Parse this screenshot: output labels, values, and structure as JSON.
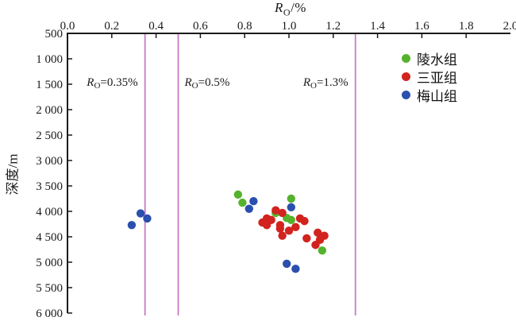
{
  "chart_data": {
    "type": "scatter",
    "title": {
      "var": "R",
      "sub": "O",
      "suffix": "/%"
    },
    "xlabel": "R_O/%",
    "ylabel": "深度/m",
    "grid": false,
    "legend_position": "upper right",
    "x_axis": {
      "min": 0.0,
      "max": 2.0,
      "position": "top",
      "tick_values": [
        0.0,
        0.2,
        0.4,
        0.6,
        0.8,
        1.0,
        1.2,
        1.4,
        1.6,
        1.8,
        2.0
      ],
      "tick_labels": [
        "0.0",
        "0.2",
        "0.4",
        "0.6",
        "0.8",
        "1.0",
        "1.2",
        "1.4",
        "1.6",
        "1.8",
        "2.0"
      ]
    },
    "y_axis": {
      "min": 500,
      "max": 6000,
      "inverted": true,
      "tick_values": [
        500,
        1000,
        1500,
        2000,
        2500,
        3000,
        3500,
        4000,
        4500,
        5000,
        5500,
        6000
      ],
      "tick_labels": [
        "500",
        "1 000",
        "1 500",
        "2 000",
        "2 500",
        "3 000",
        "3 500",
        "4 000",
        "4 500",
        "5 000",
        "5 500",
        "6 000"
      ]
    },
    "reference_lines": [
      {
        "value": 0.35,
        "color": "#c878c8",
        "label_side": "left",
        "label": {
          "var": "R",
          "sub": "O",
          "rest": "=0.35%"
        }
      },
      {
        "value": 0.5,
        "color": "#c878c8",
        "label_side": "right",
        "label": {
          "var": "R",
          "sub": "O",
          "rest": "=0.5%"
        }
      },
      {
        "value": 1.3,
        "color": "#c878c8",
        "label_side": "left",
        "label": {
          "var": "R",
          "sub": "O",
          "rest": "=1.3%"
        }
      }
    ],
    "series": [
      {
        "name": "陵水组",
        "color": "#55b22d",
        "points": [
          [
            0.77,
            3670
          ],
          [
            0.79,
            3830
          ],
          [
            1.01,
            3750
          ],
          [
            0.94,
            4030
          ],
          [
            0.99,
            4130
          ],
          [
            1.01,
            4170
          ],
          [
            1.15,
            4770
          ]
        ]
      },
      {
        "name": "三亚组",
        "color": "#d2231e",
        "points": [
          [
            0.94,
            3980
          ],
          [
            0.97,
            4030
          ],
          [
            0.9,
            4140
          ],
          [
            0.92,
            4170
          ],
          [
            1.05,
            4140
          ],
          [
            1.07,
            4190
          ],
          [
            0.88,
            4220
          ],
          [
            0.9,
            4270
          ],
          [
            0.96,
            4270
          ],
          [
            1.03,
            4310
          ],
          [
            0.96,
            4340
          ],
          [
            1.0,
            4380
          ],
          [
            0.97,
            4480
          ],
          [
            1.13,
            4420
          ],
          [
            1.16,
            4480
          ],
          [
            1.08,
            4530
          ],
          [
            1.14,
            4560
          ],
          [
            1.12,
            4660
          ]
        ]
      },
      {
        "name": "梅山组",
        "color": "#2a4fae",
        "points": [
          [
            0.84,
            3800
          ],
          [
            0.82,
            3950
          ],
          [
            1.01,
            3920
          ],
          [
            0.99,
            5030
          ],
          [
            1.03,
            5130
          ],
          [
            0.29,
            4270
          ],
          [
            0.33,
            4040
          ],
          [
            0.36,
            4140
          ]
        ]
      }
    ]
  },
  "colors": {
    "axis": "#1a1a1a",
    "background": "#ffffff"
  }
}
